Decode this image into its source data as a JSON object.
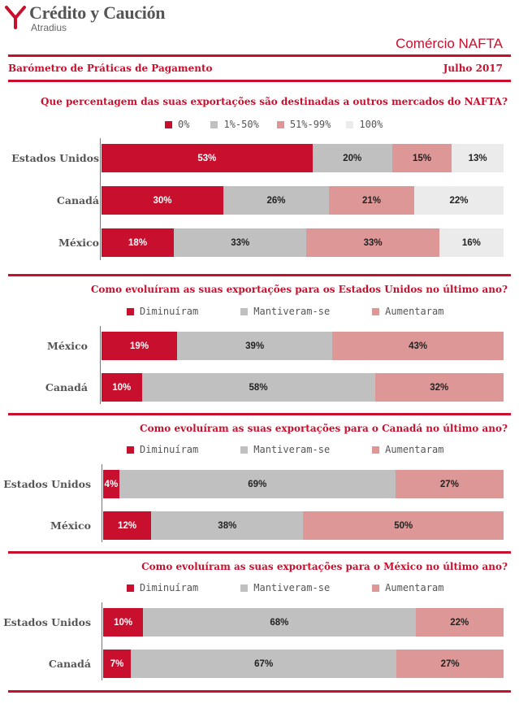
{
  "brand": {
    "name": "Crédito y Caución",
    "sub": "Atradius"
  },
  "header": {
    "title": "Comércio NAFTA",
    "left": "Barómetro de Práticas de Pagamento",
    "right": "Julho 2017"
  },
  "colors": {
    "red": "#c8102e",
    "grey": "#c0c0c0",
    "pink": "#dd9797",
    "light": "#ebebeb"
  },
  "chart_data": [
    {
      "type": "bar",
      "stacked": true,
      "orientation": "horizontal",
      "title": "Que percentagem das suas exportações são destinadas a outros mercados do NAFTA?",
      "categories": [
        "Estados Unidos",
        "Canadá",
        "México"
      ],
      "series": [
        {
          "name": "0%",
          "color": "#c8102e",
          "values": [
            53,
            30,
            18
          ],
          "labels": [
            "53%",
            "30%",
            "18%"
          ]
        },
        {
          "name": "1%-50%",
          "color": "#c0c0c0",
          "values": [
            20,
            26,
            33
          ],
          "labels": [
            "20%",
            "26%",
            "33%"
          ]
        },
        {
          "name": "51%-99%",
          "color": "#dd9797",
          "values": [
            15,
            21,
            33
          ],
          "labels": [
            "15%",
            "21%",
            "33%"
          ]
        },
        {
          "name": "100%",
          "color": "#ebebeb",
          "values": [
            13,
            22,
            16
          ],
          "labels": [
            "13%",
            "22%",
            "16%"
          ]
        }
      ]
    },
    {
      "type": "bar",
      "stacked": true,
      "orientation": "horizontal",
      "title": "Como evoluíram as suas exportações para os Estados Unidos no último ano?",
      "categories": [
        "México",
        "Canadá"
      ],
      "series": [
        {
          "name": "Diminuíram",
          "color": "#c8102e",
          "values": [
            19,
            10
          ],
          "labels": [
            "19%",
            "10%"
          ]
        },
        {
          "name": "Mantiveram-se",
          "color": "#c0c0c0",
          "values": [
            39,
            58
          ],
          "labels": [
            "39%",
            "58%"
          ]
        },
        {
          "name": "Aumentaram",
          "color": "#dd9797",
          "values": [
            43,
            32
          ],
          "labels": [
            "43%",
            "32%"
          ]
        }
      ]
    },
    {
      "type": "bar",
      "stacked": true,
      "orientation": "horizontal",
      "title": "Como evoluíram as suas exportações para o Canadá no último ano?",
      "categories": [
        "Estados Unidos",
        "México"
      ],
      "series": [
        {
          "name": "Diminuíram",
          "color": "#c8102e",
          "values": [
            4,
            12
          ],
          "labels": [
            "4%",
            "12%"
          ]
        },
        {
          "name": "Mantiveram-se",
          "color": "#c0c0c0",
          "values": [
            69,
            38
          ],
          "labels": [
            "69%",
            "38%"
          ]
        },
        {
          "name": "Aumentaram",
          "color": "#dd9797",
          "values": [
            27,
            50
          ],
          "labels": [
            "27%",
            "50%"
          ]
        }
      ]
    },
    {
      "type": "bar",
      "stacked": true,
      "orientation": "horizontal",
      "title": "Como evoluíram as suas exportações para o México no último ano?",
      "categories": [
        "Estados Unidos",
        "Canadá"
      ],
      "series": [
        {
          "name": "Diminuíram",
          "color": "#c8102e",
          "values": [
            10,
            7
          ],
          "labels": [
            "10%",
            "7%"
          ]
        },
        {
          "name": "Mantiveram-se",
          "color": "#c0c0c0",
          "values": [
            68,
            67
          ],
          "labels": [
            "68%",
            "67%"
          ]
        },
        {
          "name": "Aumentaram",
          "color": "#dd9797",
          "values": [
            22,
            27
          ],
          "labels": [
            "22%",
            "27%"
          ]
        }
      ]
    }
  ]
}
